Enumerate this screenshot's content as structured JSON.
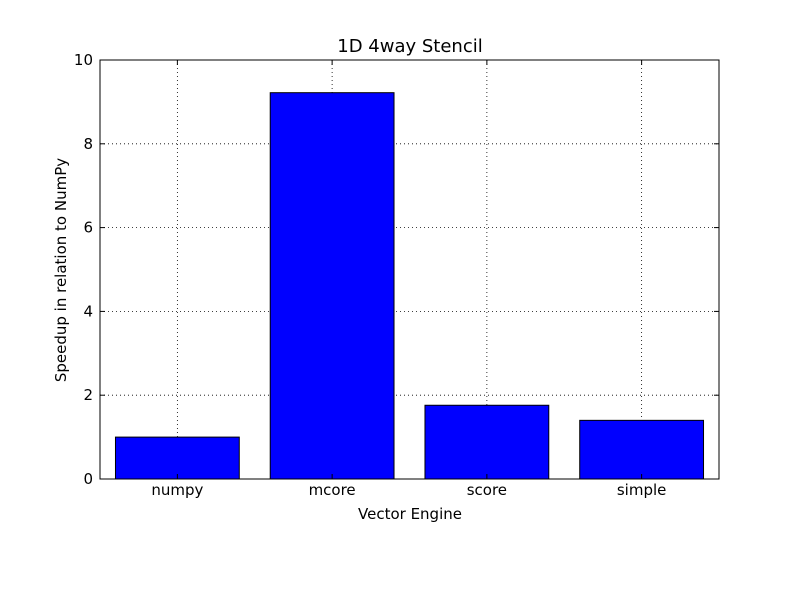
{
  "chart_data": {
    "type": "bar",
    "title": "1D 4way Stencil",
    "xlabel": "Vector Engine",
    "ylabel": "Speedup in relation to NumPy",
    "categories": [
      "numpy",
      "mcore",
      "score",
      "simple"
    ],
    "values": [
      1.0,
      9.22,
      1.76,
      1.4
    ],
    "ylim": [
      0,
      10
    ],
    "yticks": [
      "0",
      "2",
      "4",
      "6",
      "8",
      "10"
    ],
    "grid": true,
    "bar_color": "#0000ff",
    "edge_color": "#000000"
  }
}
